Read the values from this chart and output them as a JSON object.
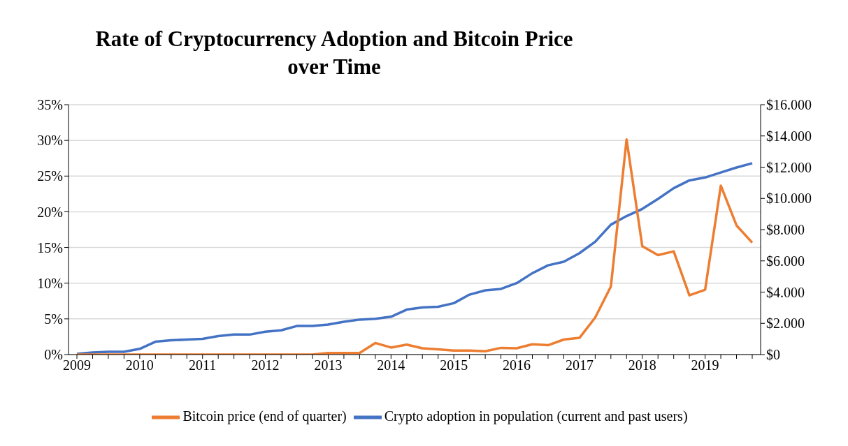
{
  "chart_data": {
    "type": "line",
    "title": "Rate of Cryptocurrency Adoption and Bitcoin Price over Time",
    "categories": [
      "2009",
      null,
      null,
      null,
      "2010",
      null,
      null,
      null,
      "2011",
      null,
      null,
      null,
      "2012",
      null,
      null,
      null,
      "2013",
      null,
      null,
      null,
      "2014",
      null,
      null,
      null,
      "2015",
      null,
      null,
      null,
      "2016",
      null,
      null,
      null,
      "2017",
      null,
      null,
      null,
      "2018",
      null,
      null,
      null,
      "2019",
      null,
      null,
      null
    ],
    "series": [
      {
        "name": "Crypto adoption in population (current and past users)",
        "color": "#4472c4",
        "values": [
          0.1,
          0.3,
          0.4,
          0.4,
          0.8,
          1.8,
          2.0,
          2.1,
          2.2,
          2.6,
          2.8,
          2.8,
          3.2,
          3.4,
          4.0,
          4.0,
          4.2,
          4.6,
          4.9,
          5.0,
          5.3,
          6.3,
          6.6,
          6.7,
          7.2,
          8.4,
          9.0,
          9.2,
          10.0,
          11.4,
          12.5,
          13.0,
          14.2,
          15.8,
          18.2,
          19.4,
          20.4,
          21.8,
          23.3,
          24.4,
          24.8,
          25.5,
          26.2,
          26.8
        ]
      },
      {
        "name": "Bitcoin price (end of quarter)",
        "color": "#ed7d31",
        "axis": "y2",
        "values": [
          0,
          0,
          0,
          0,
          0,
          0,
          0,
          0,
          0,
          0,
          0,
          0,
          0,
          0,
          0,
          0,
          100,
          100,
          100,
          740,
          450,
          640,
          400,
          340,
          260,
          260,
          210,
          430,
          400,
          660,
          600,
          960,
          1070,
          2370,
          4360,
          13780,
          6940,
          6370,
          6610,
          3790,
          4150,
          10820,
          8270,
          7170
        ]
      }
    ],
    "ylim": [
      0,
      35
    ],
    "yticks": [
      {
        "value": 0,
        "label": "0%"
      },
      {
        "value": 5,
        "label": "5%"
      },
      {
        "value": 10,
        "label": "10%"
      },
      {
        "value": 15,
        "label": "15%"
      },
      {
        "value": 20,
        "label": "20%"
      },
      {
        "value": 25,
        "label": "25%"
      },
      {
        "value": 30,
        "label": "30%"
      },
      {
        "value": 35,
        "label": "35%"
      }
    ],
    "y2lim": [
      0,
      16000
    ],
    "y2ticks": [
      {
        "value": 0,
        "label": "$0"
      },
      {
        "value": 2000,
        "label": "$2.000"
      },
      {
        "value": 4000,
        "label": "$4.000"
      },
      {
        "value": 6000,
        "label": "$6.000"
      },
      {
        "value": 8000,
        "label": "$8.000"
      },
      {
        "value": 10000,
        "label": "$10.000"
      },
      {
        "value": 12000,
        "label": "$12.000"
      },
      {
        "value": 14000,
        "label": "$14.000"
      },
      {
        "value": 16000,
        "label": "$16.000"
      }
    ],
    "grid": "y",
    "legend": "bottom",
    "marker": "none",
    "line_style": "solid"
  }
}
